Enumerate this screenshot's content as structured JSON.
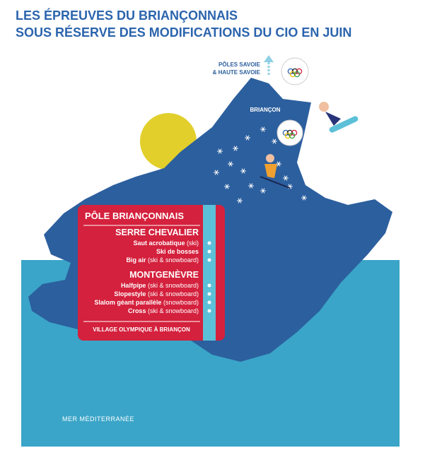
{
  "header": {
    "title_lines": [
      "LES ÉPREUVES DU BRIANÇONNAIS",
      "SOUS RÉSERVE DES MODIFICATIONS DU CIO EN JUIN"
    ]
  },
  "map": {
    "poles_label": [
      "PÔLES SAVOIE",
      "& HAUTE SAVOIE"
    ],
    "city": "BRIANÇON",
    "sea": "MER MÉDITERRANÉE"
  },
  "panel": {
    "title": "PÔLE BRIANÇONNAIS",
    "sites": [
      {
        "name": "SERRE CHEVALIER",
        "events": [
          {
            "name": "Saut acrobatique",
            "detail": "(ski)"
          },
          {
            "name": "Ski de bosses"
          },
          {
            "name": "Big air",
            "detail": "(ski & snowboard)"
          }
        ]
      },
      {
        "name": "MONTGENÈVRE",
        "events": [
          {
            "name": "Halfpipe",
            "detail": "(ski & snowboard)"
          },
          {
            "name": "Slopestyle",
            "detail": "(ski & snowboard)"
          },
          {
            "name": "Slalom géant parallèle",
            "detail": "(snowboard)"
          },
          {
            "name": "Cross",
            "detail": "(ski & snowboard)"
          }
        ]
      }
    ],
    "footer": "VILLAGE OLYMPIQUE À BRIANÇON"
  }
}
